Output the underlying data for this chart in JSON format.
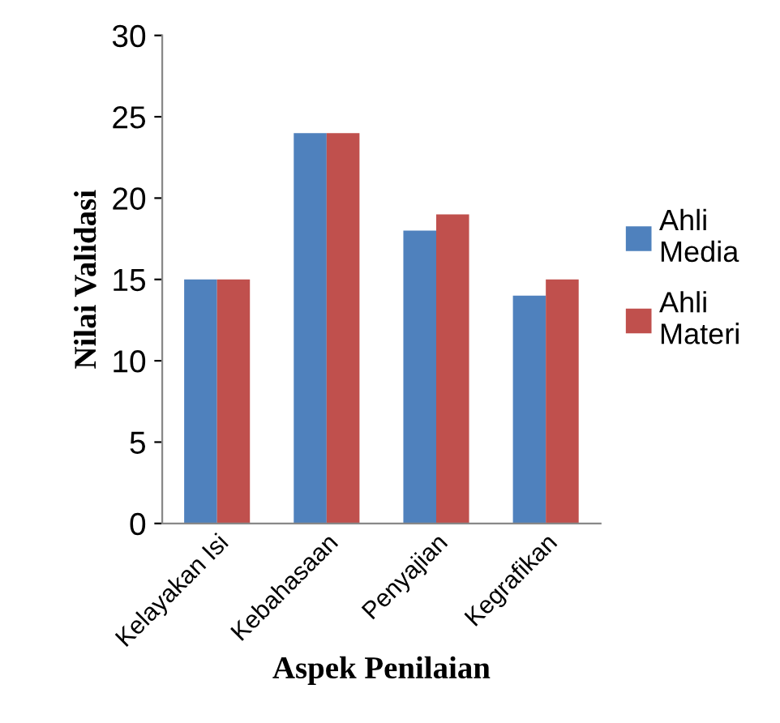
{
  "chart_data": {
    "type": "bar",
    "xlabel": "Aspek Penilaian",
    "ylabel": "Nilai Validasi",
    "categories": [
      "Kelayakan Isi",
      "Kebahasaan",
      "Penyajian",
      "Kegrafikan"
    ],
    "series": [
      {
        "name": "Ahli Media",
        "color": "#4f81bd",
        "values": [
          15,
          24,
          18,
          14
        ]
      },
      {
        "name": "Ahli Materi",
        "color": "#c0504d",
        "values": [
          15,
          24,
          19,
          15
        ]
      }
    ],
    "ylim": [
      0,
      30
    ],
    "yticks": [
      0,
      5,
      10,
      15,
      20,
      25,
      30
    ],
    "grid": false,
    "legend": "right"
  }
}
